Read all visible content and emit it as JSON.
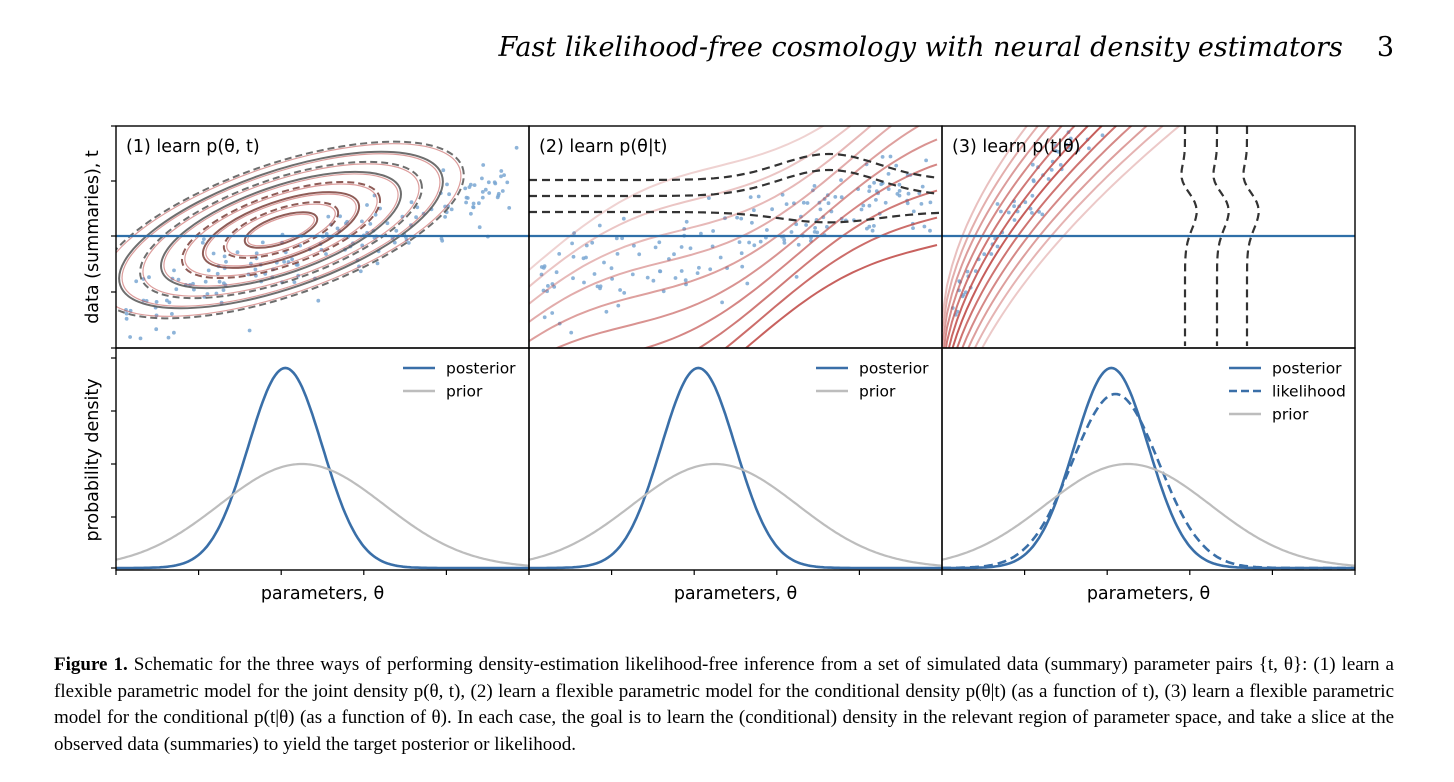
{
  "header": {
    "title": "Fast likelihood-free cosmology with neural density estimators",
    "page_number": "3"
  },
  "figure": {
    "panels": [
      {
        "label": "(1) learn p(θ, t)"
      },
      {
        "label": "(2) learn p(θ|t)"
      },
      {
        "label": "(3) learn p(t|θ)"
      }
    ],
    "top_ylabel": "data (summaries), t",
    "bottom_ylabel": "probability density",
    "xlabel": "parameters, θ",
    "legends": [
      [
        "posterior",
        "prior"
      ],
      [
        "posterior",
        "prior"
      ],
      [
        "posterior",
        "likelihood",
        "prior"
      ]
    ],
    "colors": {
      "posterior": "#3a6fa8",
      "prior": "#bdbdbd",
      "observed_line": "#2f6fa8",
      "scatter": "#7aa7d2",
      "contour_dark": "#555555",
      "contour_red": "#c04b48"
    }
  },
  "chart_data": [
    {
      "type": "line",
      "title": "",
      "xlabel": "parameters, θ",
      "ylabel": "probability density",
      "series": [
        {
          "name": "posterior",
          "shape": "gaussian",
          "mean": 0.41,
          "sd": 0.09,
          "peak": 1.0
        },
        {
          "name": "prior",
          "shape": "gaussian",
          "mean": 0.45,
          "sd": 0.2,
          "peak": 0.52
        }
      ]
    },
    {
      "type": "line",
      "title": "",
      "xlabel": "parameters, θ",
      "ylabel": "probability density",
      "series": [
        {
          "name": "posterior",
          "shape": "gaussian",
          "mean": 0.41,
          "sd": 0.09,
          "peak": 1.0
        },
        {
          "name": "prior",
          "shape": "gaussian",
          "mean": 0.45,
          "sd": 0.2,
          "peak": 0.52
        }
      ]
    },
    {
      "type": "line",
      "title": "",
      "xlabel": "parameters, θ",
      "ylabel": "probability density",
      "series": [
        {
          "name": "posterior",
          "shape": "gaussian",
          "mean": 0.41,
          "sd": 0.09,
          "peak": 1.0
        },
        {
          "name": "likelihood",
          "shape": "gaussian",
          "mean": 0.42,
          "sd": 0.105,
          "peak": 0.87
        },
        {
          "name": "prior",
          "shape": "gaussian",
          "mean": 0.45,
          "sd": 0.2,
          "peak": 0.52
        }
      ]
    }
  ],
  "caption": {
    "lead": "Figure 1.",
    "text": "Schematic for the three ways of performing density-estimation likelihood-free inference from a set of simulated data (summary) parameter pairs {t, θ}: (1) learn a flexible parametric model for the joint density p(θ, t), (2) learn a flexible parametric model for the conditional density p(θ|t) (as a function of t), (3) learn a flexible parametric model for the conditional p(t|θ) (as a function of θ). In each case, the goal is to learn the (conditional) density in the relevant region of parameter space, and take a slice at the observed data (summaries) to yield the target posterior or likelihood."
  }
}
